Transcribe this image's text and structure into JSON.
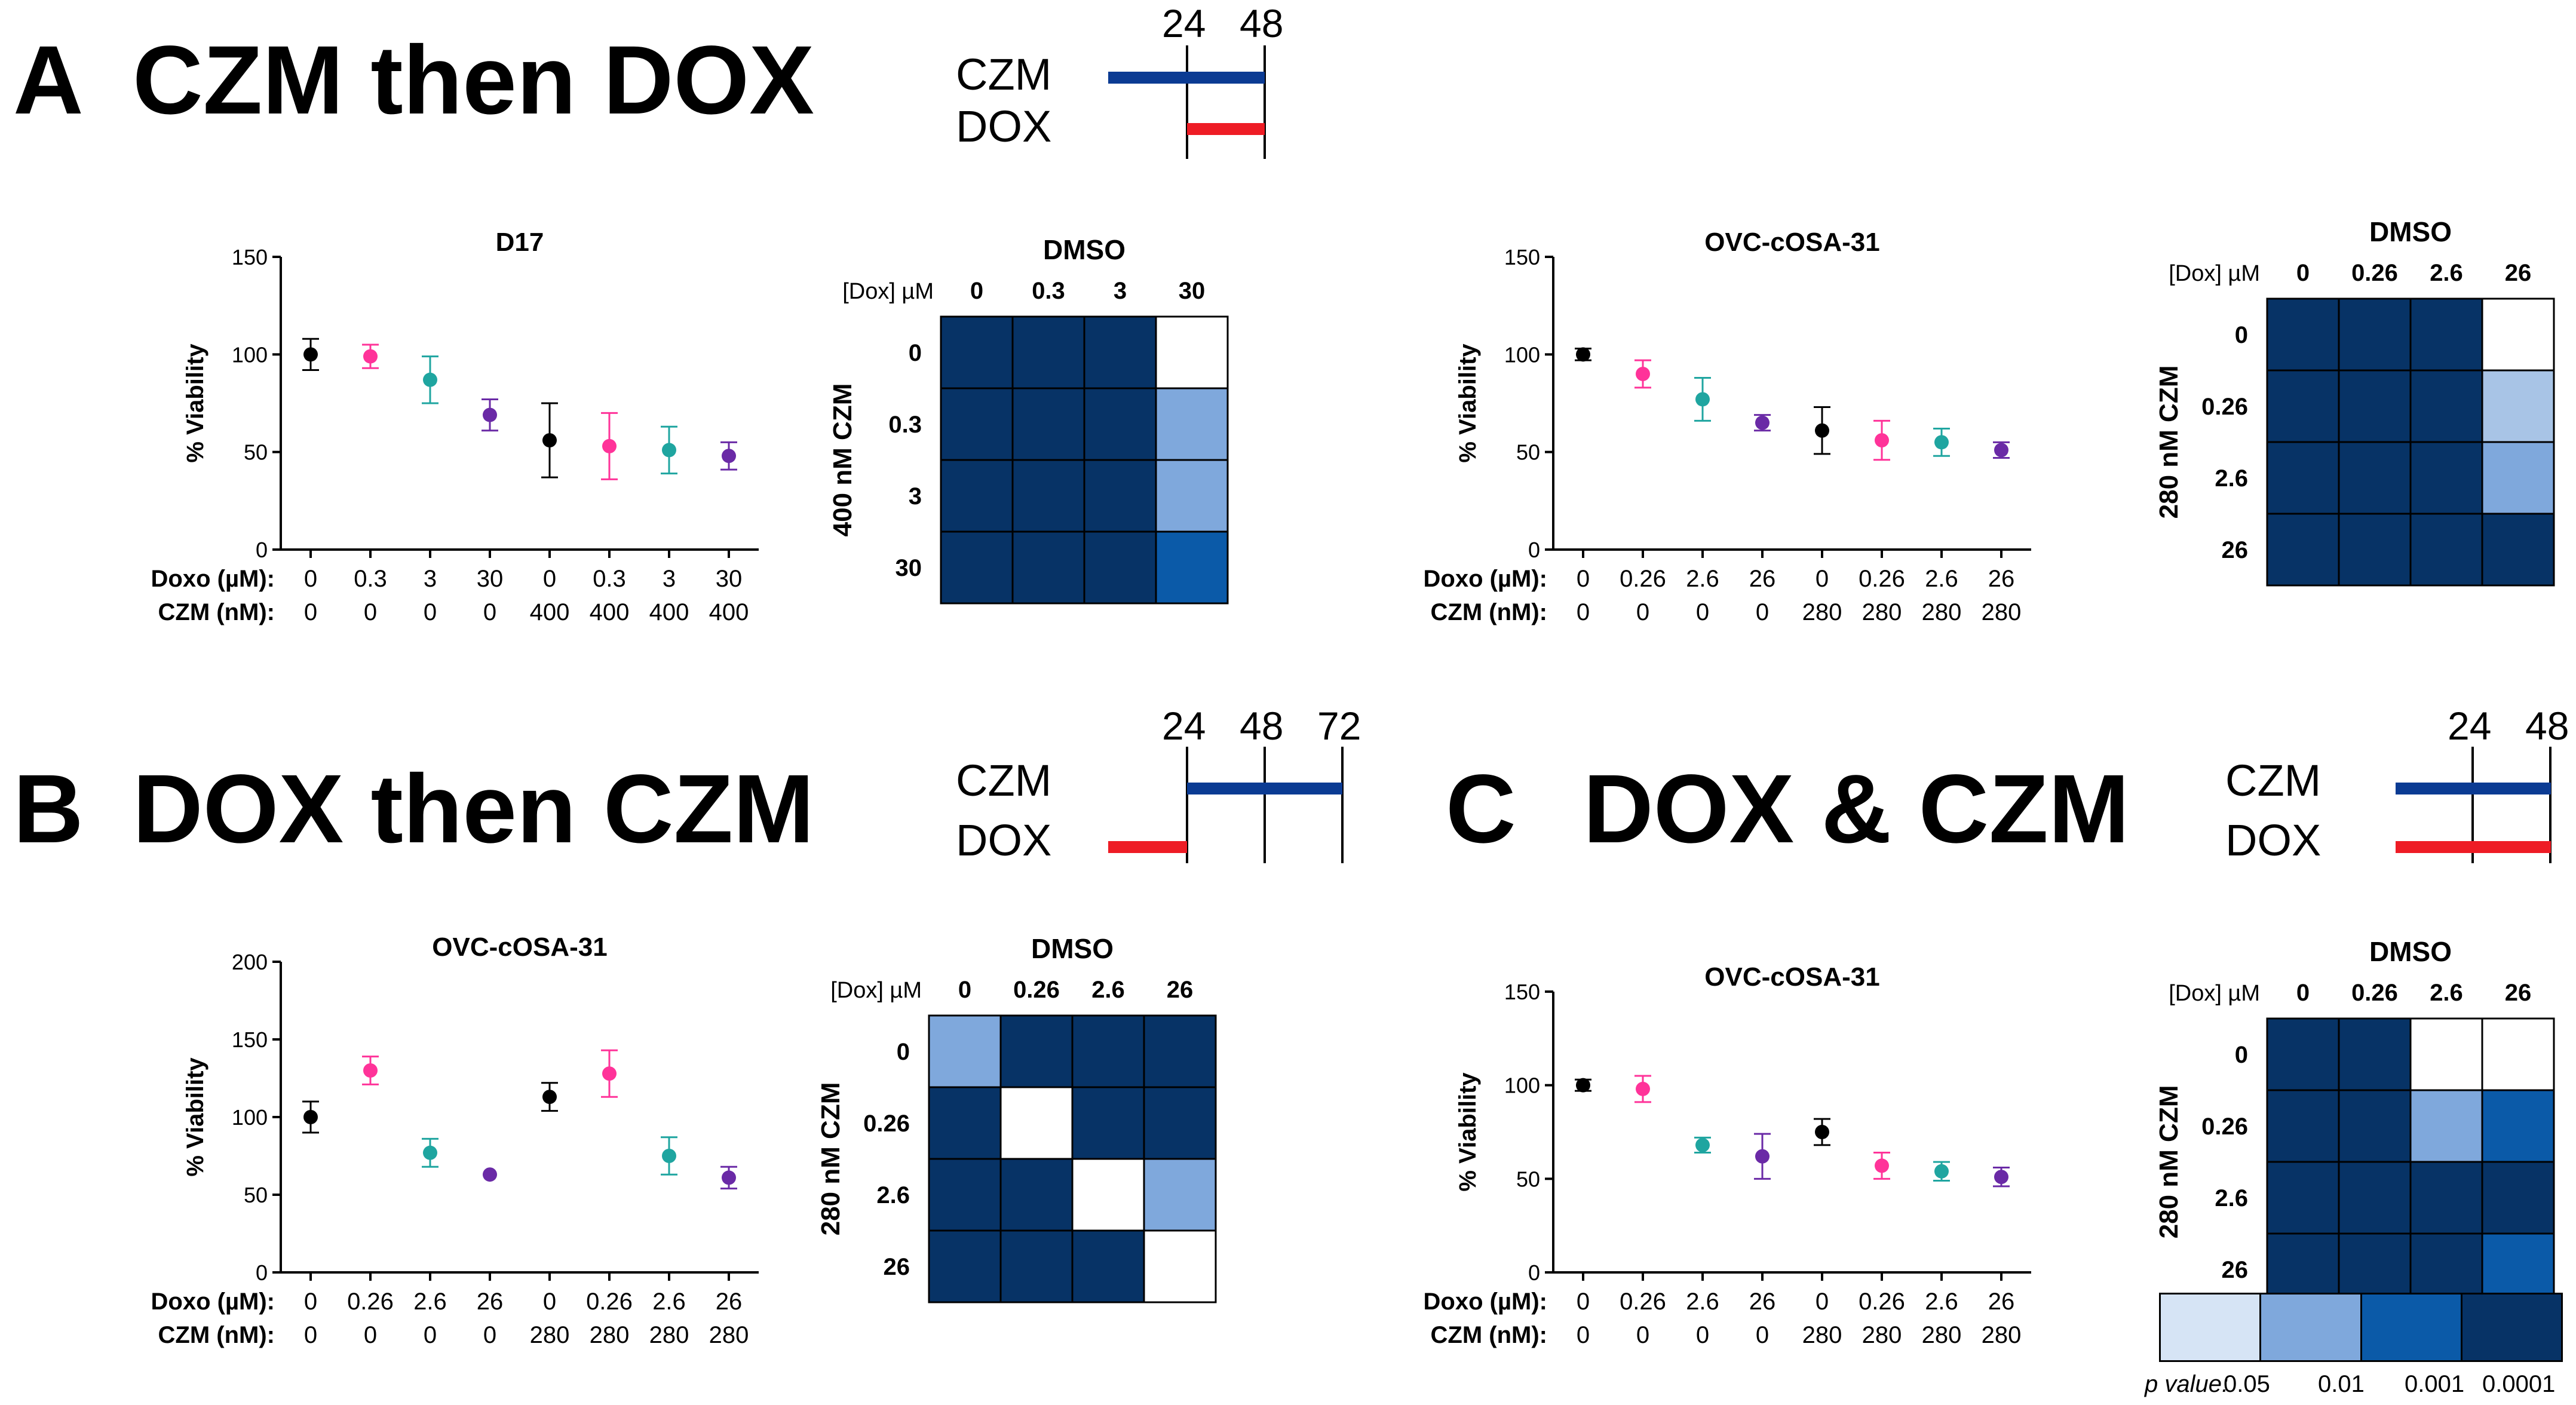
{
  "panels": {
    "A": {
      "letter": "A",
      "title": "CZM then DOX"
    },
    "B": {
      "letter": "B",
      "title": "DOX then CZM"
    },
    "C": {
      "letter": "C",
      "title": "DOX & CZM"
    }
  },
  "schedules": {
    "A": {
      "czm_label": "CZM",
      "dox_label": "DOX",
      "ticks": [
        "24",
        "48"
      ]
    },
    "B": {
      "czm_label": "CZM",
      "dox_label": "DOX",
      "ticks": [
        "24",
        "48",
        "72"
      ]
    },
    "C": {
      "czm_label": "CZM",
      "dox_label": "DOX",
      "ticks": [
        "24",
        "48"
      ]
    }
  },
  "colors": {
    "black": "#000000",
    "pink": "#ff3399",
    "teal": "#1fa5a0",
    "purple": "#6a2aa6",
    "czm_line": "#0b3b93",
    "dox_line": "#ee1c25"
  },
  "legend": {
    "label": "p value:",
    "values": [
      "0.05",
      "0.01",
      "0.001",
      "0.0001"
    ],
    "colors": [
      "#d6e4f5",
      "#7fa8dc",
      "#0b5aa8",
      "#073366"
    ]
  },
  "chart_data": [
    {
      "id": "A1",
      "type": "scatter",
      "title": "D17",
      "ylabel": "% Viability",
      "ylim": [
        0,
        150
      ],
      "yticks": [
        "0",
        "50",
        "100",
        "150"
      ],
      "row1_label": "Doxo (µM):",
      "row2_label": "CZM (nM):",
      "doxo": [
        "0",
        "0.3",
        "3",
        "30",
        "0",
        "0.3",
        "3",
        "30"
      ],
      "czm": [
        "0",
        "0",
        "0",
        "0",
        "400",
        "400",
        "400",
        "400"
      ],
      "values": [
        100,
        99,
        87,
        69,
        56,
        53,
        51,
        48
      ],
      "err": [
        8,
        6,
        12,
        8,
        19,
        17,
        12,
        7
      ],
      "colors": [
        "#000000",
        "#ff3399",
        "#1fa5a0",
        "#6a2aa6",
        "#000000",
        "#ff3399",
        "#1fa5a0",
        "#6a2aa6"
      ]
    },
    {
      "id": "A2",
      "type": "scatter",
      "title": "OVC-cOSA-31",
      "ylabel": "% Viability",
      "ylim": [
        0,
        150
      ],
      "yticks": [
        "0",
        "50",
        "100",
        "150"
      ],
      "row1_label": "Doxo (µM):",
      "row2_label": "CZM (nM):",
      "doxo": [
        "0",
        "0.26",
        "2.6",
        "26",
        "0",
        "0.26",
        "2.6",
        "26"
      ],
      "czm": [
        "0",
        "0",
        "0",
        "0",
        "280",
        "280",
        "280",
        "280"
      ],
      "values": [
        100,
        90,
        77,
        65,
        61,
        56,
        55,
        51
      ],
      "err": [
        3,
        7,
        11,
        4,
        12,
        10,
        7,
        4
      ],
      "colors": [
        "#000000",
        "#ff3399",
        "#1fa5a0",
        "#6a2aa6",
        "#000000",
        "#ff3399",
        "#1fa5a0",
        "#6a2aa6"
      ]
    },
    {
      "id": "B1",
      "type": "scatter",
      "title": "OVC-cOSA-31",
      "ylabel": "% Viability",
      "ylim": [
        0,
        200
      ],
      "yticks": [
        "0",
        "50",
        "100",
        "150",
        "200"
      ],
      "row1_label": "Doxo (µM):",
      "row2_label": "CZM (nM):",
      "doxo": [
        "0",
        "0.26",
        "2.6",
        "26",
        "0",
        "0.26",
        "2.6",
        "26"
      ],
      "czm": [
        "0",
        "0",
        "0",
        "0",
        "280",
        "280",
        "280",
        "280"
      ],
      "values": [
        100,
        130,
        77,
        63,
        113,
        128,
        75,
        61
      ],
      "err": [
        10,
        9,
        9,
        0,
        9,
        15,
        12,
        7
      ],
      "colors": [
        "#000000",
        "#ff3399",
        "#1fa5a0",
        "#6a2aa6",
        "#000000",
        "#ff3399",
        "#1fa5a0",
        "#6a2aa6"
      ]
    },
    {
      "id": "C1",
      "type": "scatter",
      "title": "OVC-cOSA-31",
      "ylabel": "% Viability",
      "ylim": [
        0,
        150
      ],
      "yticks": [
        "0",
        "50",
        "100",
        "150"
      ],
      "row1_label": "Doxo (µM):",
      "row2_label": "CZM (nM):",
      "doxo": [
        "0",
        "0.26",
        "2.6",
        "26",
        "0",
        "0.26",
        "2.6",
        "26"
      ],
      "czm": [
        "0",
        "0",
        "0",
        "0",
        "280",
        "280",
        "280",
        "280"
      ],
      "values": [
        100,
        98,
        68,
        62,
        75,
        57,
        54,
        51
      ],
      "err": [
        3,
        7,
        4,
        12,
        7,
        7,
        5,
        5
      ],
      "colors": [
        "#000000",
        "#ff3399",
        "#1fa5a0",
        "#6a2aa6",
        "#000000",
        "#ff3399",
        "#1fa5a0",
        "#6a2aa6"
      ]
    },
    {
      "id": "HA1",
      "type": "heatmap",
      "title": "DMSO",
      "corner_label": "[Dox] µM",
      "row_axis_label": "400 nM CZM",
      "cols": [
        "0",
        "0.3",
        "3",
        "30"
      ],
      "rows": [
        "0",
        "0.3",
        "3",
        "30"
      ],
      "matrix": [
        [
          "#073366",
          "#073366",
          "#073366",
          "#ffffff"
        ],
        [
          "#073366",
          "#073366",
          "#073366",
          "#7fa8dc"
        ],
        [
          "#073366",
          "#073366",
          "#073366",
          "#7fa8dc"
        ],
        [
          "#073366",
          "#073366",
          "#073366",
          "#0b5aa8"
        ]
      ]
    },
    {
      "id": "HA2",
      "type": "heatmap",
      "title": "DMSO",
      "corner_label": "[Dox] µM",
      "row_axis_label": "280 nM CZM",
      "cols": [
        "0",
        "0.26",
        "2.6",
        "26"
      ],
      "rows": [
        "0",
        "0.26",
        "2.6",
        "26"
      ],
      "matrix": [
        [
          "#073366",
          "#073366",
          "#073366",
          "#ffffff"
        ],
        [
          "#073366",
          "#073366",
          "#073366",
          "#a8c4e6"
        ],
        [
          "#073366",
          "#073366",
          "#073366",
          "#7fa8dc"
        ],
        [
          "#073366",
          "#073366",
          "#073366",
          "#073366"
        ]
      ]
    },
    {
      "id": "HB1",
      "type": "heatmap",
      "title": "DMSO",
      "corner_label": "[Dox] µM",
      "row_axis_label": "280 nM CZM",
      "cols": [
        "0",
        "0.26",
        "2.6",
        "26"
      ],
      "rows": [
        "0",
        "0.26",
        "2.6",
        "26"
      ],
      "matrix": [
        [
          "#7fa8dc",
          "#073366",
          "#073366",
          "#073366"
        ],
        [
          "#073366",
          "#ffffff",
          "#073366",
          "#073366"
        ],
        [
          "#073366",
          "#073366",
          "#ffffff",
          "#7fa8dc"
        ],
        [
          "#073366",
          "#073366",
          "#073366",
          "#ffffff"
        ]
      ]
    },
    {
      "id": "HC1",
      "type": "heatmap",
      "title": "DMSO",
      "corner_label": "[Dox] µM",
      "row_axis_label": "280 nM CZM",
      "cols": [
        "0",
        "0.26",
        "2.6",
        "26"
      ],
      "rows": [
        "0",
        "0.26",
        "2.6",
        "26"
      ],
      "matrix": [
        [
          "#073366",
          "#073366",
          "#ffffff",
          "#ffffff"
        ],
        [
          "#073366",
          "#073366",
          "#7fa8dc",
          "#0b5aa8"
        ],
        [
          "#073366",
          "#073366",
          "#073366",
          "#073366"
        ],
        [
          "#073366",
          "#073366",
          "#073366",
          "#0b5aa8"
        ]
      ]
    }
  ]
}
